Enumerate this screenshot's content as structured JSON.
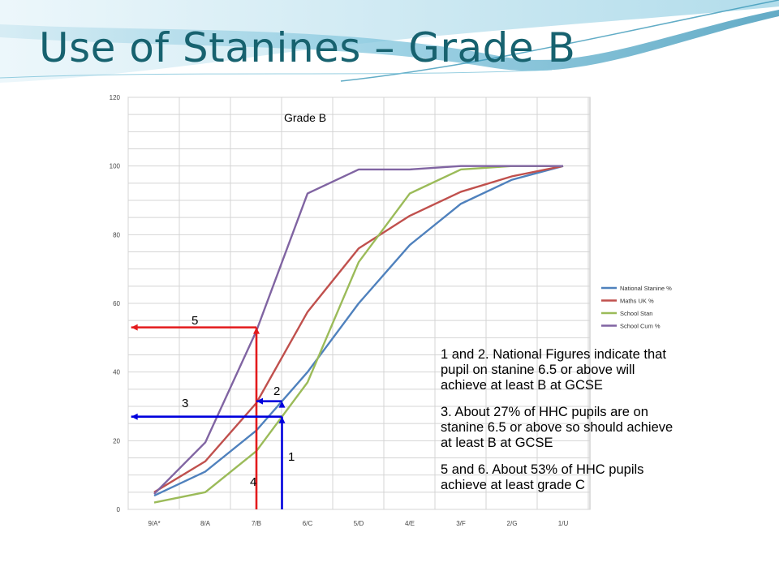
{
  "slide": {
    "title": "Use of Stanines – Grade B"
  },
  "chart_data": {
    "type": "line",
    "title": "Grade B",
    "xlabel": "",
    "ylabel": "",
    "categories": [
      "9/A*",
      "8/A",
      "7/B",
      "6/C",
      "5/D",
      "4/E",
      "3/F",
      "2/G",
      "1/U"
    ],
    "ylim": [
      0,
      120
    ],
    "yticks": [
      0,
      20,
      40,
      60,
      80,
      100,
      120
    ],
    "grid": true,
    "legend": "right",
    "series": [
      {
        "name": "National Stanine %",
        "color": "#4f81bd",
        "values": [
          4,
          11,
          23,
          40,
          60,
          77,
          89,
          96,
          100
        ]
      },
      {
        "name": "Maths UK %",
        "color": "#c0504d",
        "values": [
          5,
          14,
          31,
          57.5,
          76,
          85.5,
          92.5,
          97,
          100
        ]
      },
      {
        "name": "School Stan",
        "color": "#9bbb59",
        "values": [
          2,
          5,
          17,
          37,
          72,
          92,
          99,
          100,
          100
        ]
      },
      {
        "name": "School Cum %",
        "color": "#8064a2",
        "values": [
          4.5,
          19.5,
          52,
          92,
          99,
          99,
          100,
          100,
          100
        ]
      }
    ],
    "annotations": [
      {
        "label": "5",
        "color": "#e31a1c",
        "from": {
          "x": 2.0,
          "y": 53
        },
        "to": {
          "x": -0.45,
          "y": 53
        },
        "drop_to_axis": true
      },
      {
        "label": "3",
        "color": "#0000dd",
        "from": {
          "x": 2.5,
          "y": 27
        },
        "to": {
          "x": -0.45,
          "y": 27
        },
        "drop_to_axis": true
      },
      {
        "label": "2",
        "color": "#0000dd",
        "from": {
          "x": 2.5,
          "y": 31.5
        },
        "to": {
          "x": 2.0,
          "y": 31.5
        },
        "drop_to_axis": false
      },
      {
        "label": "1",
        "color": "#0000dd",
        "vertical_at": 2.5
      },
      {
        "label": "4",
        "color": "#e31a1c",
        "vertical_at": 2.0
      }
    ]
  },
  "notes": {
    "para1": "1 and 2. National Figures indicate that pupil on stanine 6.5 or above will achieve at least B at GCSE",
    "para2": "3. About 27% of HHC pupils are on stanine 6.5 or above so should achieve at least B at GCSE",
    "para3": "5 and 6. About 53% of HHC pupils achieve at least grade C"
  }
}
